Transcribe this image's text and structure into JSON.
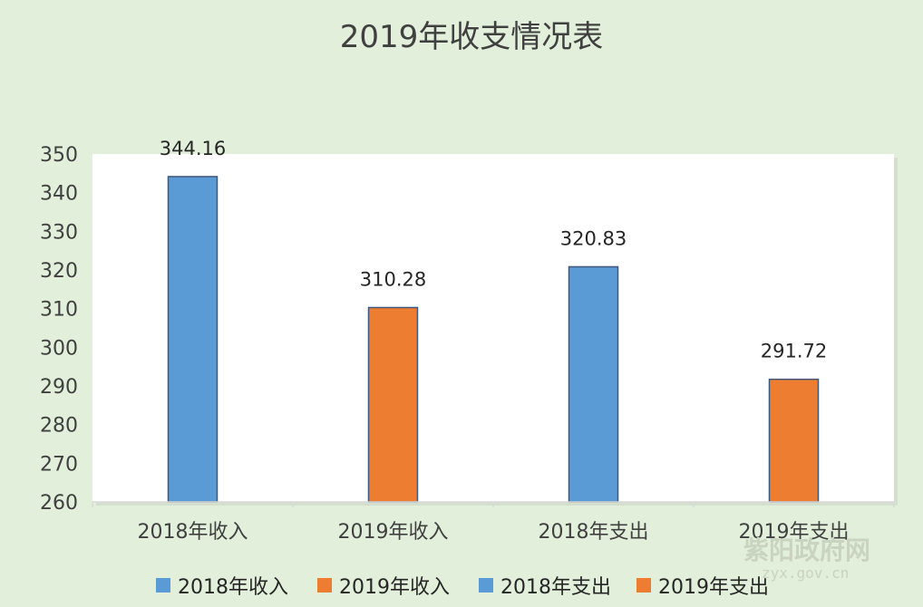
{
  "chart_data": {
    "type": "bar",
    "title": "2019年收支情况表",
    "categories": [
      "2018年收入",
      "2019年收入",
      "2018年支出",
      "2019年支出"
    ],
    "values": [
      344.16,
      310.28,
      320.83,
      291.72
    ],
    "data_labels": [
      "344.16",
      "310.28",
      "320.83",
      "291.72"
    ],
    "bar_colors": [
      "#5b9bd5",
      "#ed7d31",
      "#5b9bd5",
      "#ed7d31"
    ],
    "ylim": [
      260,
      350
    ],
    "yticks": [
      260,
      270,
      280,
      290,
      300,
      310,
      320,
      330,
      340,
      350
    ],
    "grid": false,
    "legend_position": "bottom",
    "legend": [
      {
        "label": "2018年收入",
        "color": "#5b9bd5"
      },
      {
        "label": "2019年收入",
        "color": "#ed7d31"
      },
      {
        "label": "2018年支出",
        "color": "#5b9bd5"
      },
      {
        "label": "2019年支出",
        "color": "#ed7d31"
      }
    ]
  },
  "watermark": {
    "name": "紫阳政府网",
    "url": "zyx.gov.cn"
  }
}
